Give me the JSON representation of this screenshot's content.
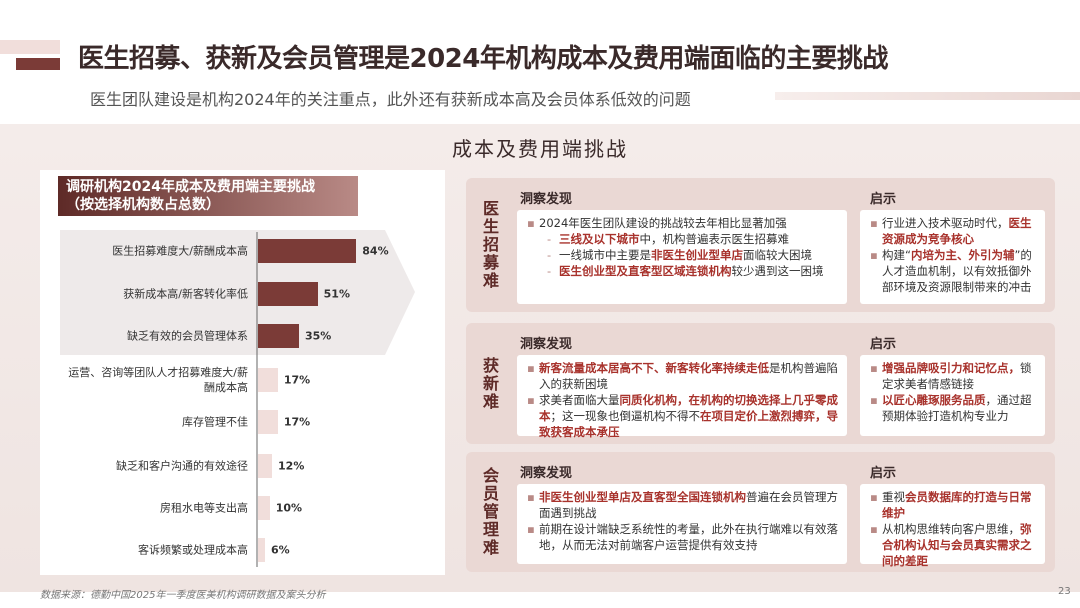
{
  "header": {
    "title": "医生招募、获新及会员管理是2024年机构成本及费用端面临的主要挑战",
    "subtitle": "医生团队建设是机构2024年的关注重点，此外还有获新成本高及会员体系低效的问题"
  },
  "section_title": "成本及费用端挑战",
  "chart_data": {
    "type": "bar",
    "orientation": "horizontal",
    "title": "调研机构2024年成本及费用端主要挑战",
    "subtitle": "（按选择机构数占总数）",
    "categories": [
      "医生招募难度大/薪酬成本高",
      "获新成本高/新客转化率低",
      "缺乏有效的会员管理体系",
      "运营、咨询等团队人才招募难度大/薪酬成本高",
      "库存管理不佳",
      "缺乏和客户沟通的有效途径",
      "房租水电等支出高",
      "客诉频繁或处理成本高"
    ],
    "values": [
      84,
      51,
      35,
      17,
      17,
      12,
      10,
      6
    ],
    "value_labels": [
      "84%",
      "51%",
      "35%",
      "17%",
      "17%",
      "12%",
      "10%",
      "6%"
    ],
    "colors": [
      "#7b3b37",
      "#7b3b37",
      "#7b3b37",
      "#f1dedb",
      "#f1dedb",
      "#f1dedb",
      "#f1dedb",
      "#f1dedb"
    ]
  },
  "panels": [
    {
      "label": "医生招募难",
      "insight_heading": "洞察发现",
      "implication_heading": "启示",
      "insight": [
        {
          "sub": false,
          "runs": [
            {
              "text": "2024年医生团队建设的挑战较去年相比显著加强",
              "em": false
            }
          ]
        },
        {
          "sub": true,
          "runs": [
            {
              "text": "三线及以下城市",
              "em": true
            },
            {
              "text": "中，机构普遍表示医生招募难",
              "em": false
            }
          ]
        },
        {
          "sub": true,
          "runs": [
            {
              "text": "一线城市中主要是",
              "em": false
            },
            {
              "text": "非医生创业型单店",
              "em": true
            },
            {
              "text": "面临较大困境",
              "em": false
            }
          ]
        },
        {
          "sub": true,
          "runs": [
            {
              "text": "医生创业型及直客型区域连锁机构",
              "em": true
            },
            {
              "text": "较少遇到这一困境",
              "em": false
            }
          ]
        }
      ],
      "implications": [
        {
          "sub": false,
          "runs": [
            {
              "text": "行业进入技术驱动时代，",
              "em": false
            },
            {
              "text": "医生资源成为竞争核心",
              "em": true
            }
          ]
        },
        {
          "sub": false,
          "runs": [
            {
              "text": "构建“",
              "em": false
            },
            {
              "text": "内培为主、外引为辅",
              "em": true
            },
            {
              "text": "”的人才造血机制，以有效抵御外部环境及资源限制带来的冲击",
              "em": false
            }
          ]
        }
      ]
    },
    {
      "label": "获新难",
      "insight_heading": "洞察发现",
      "implication_heading": "启示",
      "insight": [
        {
          "sub": false,
          "runs": [
            {
              "text": "新客流量成本居高不下、新客转化率持续走低",
              "em": true
            },
            {
              "text": "是机构普遍陷入的获新困境",
              "em": false
            }
          ]
        },
        {
          "sub": false,
          "runs": [
            {
              "text": "求美者面临大量",
              "em": false
            },
            {
              "text": "同质化机构，在机构的切换选择上几乎零成本",
              "em": true
            },
            {
              "text": "；这一现象也倒逼机构不得不",
              "em": false
            },
            {
              "text": "在项目定价上激烈搏弈，导致获客成本承压",
              "em": true
            }
          ]
        }
      ],
      "implications": [
        {
          "sub": false,
          "runs": [
            {
              "text": "增强品牌吸引力和记忆点，",
              "em": true
            },
            {
              "text": "锁定求美者情感链接",
              "em": false
            }
          ]
        },
        {
          "sub": false,
          "runs": [
            {
              "text": "以匠心雕琢服务品质",
              "em": true
            },
            {
              "text": "，通过超预期体验打造机构专业力",
              "em": false
            }
          ]
        }
      ]
    },
    {
      "label": "会员管理难",
      "insight_heading": "洞察发现",
      "implication_heading": "启示",
      "insight": [
        {
          "sub": false,
          "runs": [
            {
              "text": "非医生创业型单店及直客型全国连锁机构",
              "em": true
            },
            {
              "text": "普遍在会员管理方面遇到挑战",
              "em": false
            }
          ]
        },
        {
          "sub": false,
          "runs": [
            {
              "text": "前期在设计端缺乏系统性的考量，此外在执行端难以有效落地，从而无法对前端客户运营提供有效支持",
              "em": false
            }
          ]
        }
      ],
      "implications": [
        {
          "sub": false,
          "runs": [
            {
              "text": "重视",
              "em": false
            },
            {
              "text": "会员数据库的打造与日常维护",
              "em": true
            }
          ]
        },
        {
          "sub": false,
          "runs": [
            {
              "text": "从机构思维转向客户思维，",
              "em": false
            },
            {
              "text": "弥合机构认知与会员真实需求之间的差距",
              "em": true
            }
          ]
        }
      ]
    }
  ],
  "footer": {
    "source": "数据来源：德勤中国2025年一季度医美机构调研数据及案头分析",
    "page": 23
  }
}
